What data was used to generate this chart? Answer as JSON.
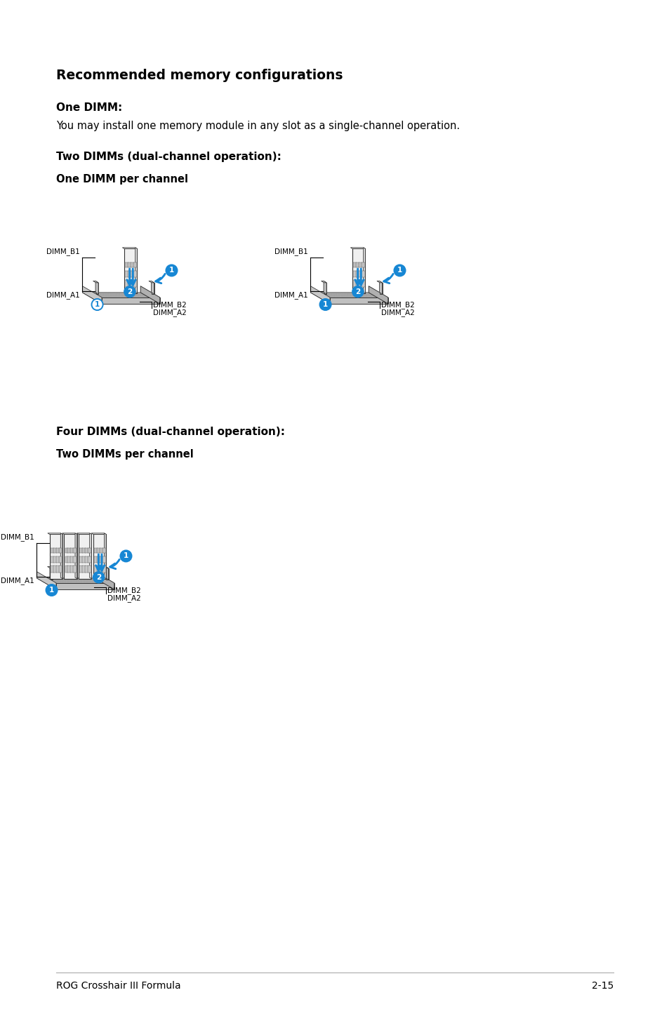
{
  "bg_color": "#ffffff",
  "title": "Recommended memory configurations",
  "section1_bold": "One DIMM:",
  "section1_text": "You may install one memory module in any slot as a single-channel operation.",
  "section2_bold": "Two DIMMs (dual-channel operation):",
  "section2_sub": "One DIMM per channel",
  "section3_bold": "Four DIMMs (dual-channel operation):",
  "section3_sub": "Two DIMMs per channel",
  "footer_left": "ROG Crosshair III Formula",
  "footer_right": "2-15",
  "accent_color": "#1787d4",
  "text_color": "#000000",
  "gray_light": "#e8e8e8",
  "gray_mid": "#b8b8b8",
  "gray_dark": "#888888",
  "gray_slot": "#cccccc",
  "edge_color": "#333333"
}
